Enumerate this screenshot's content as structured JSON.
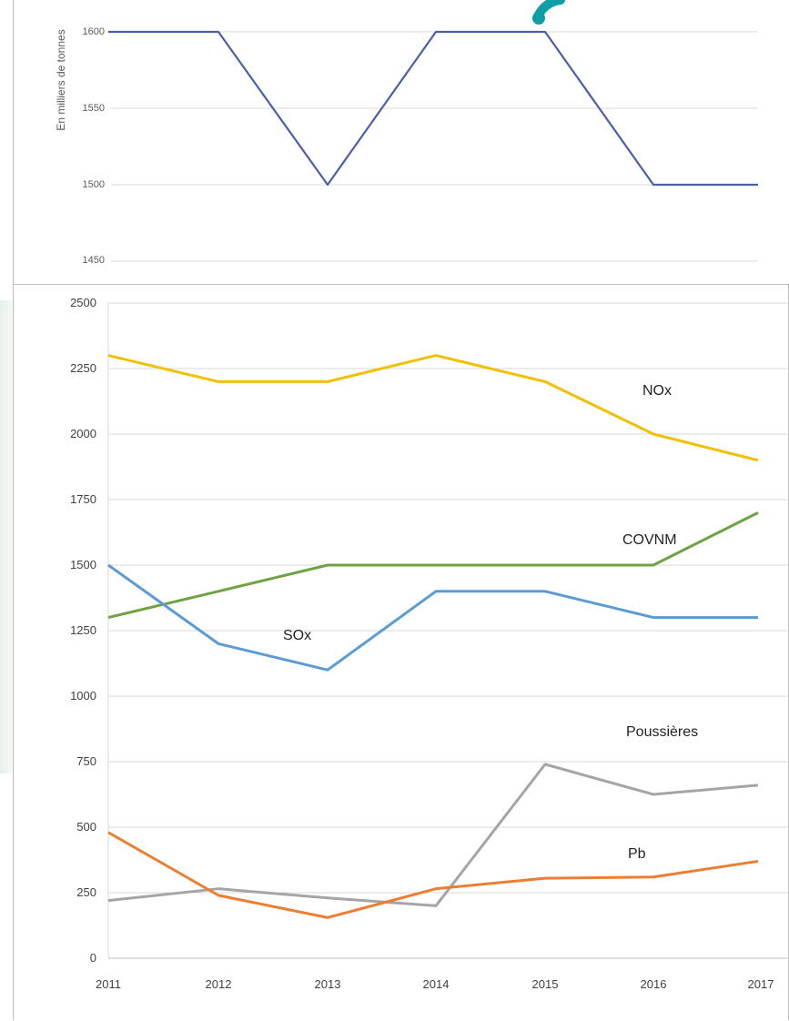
{
  "charts": {
    "top": {
      "ylabel": "En milliers de tonnes",
      "yticks": [
        "1450",
        "1500",
        "1550",
        "1600"
      ]
    },
    "bottom": {
      "yticks": [
        "0",
        "250",
        "500",
        "750",
        "1000",
        "1250",
        "1500",
        "1750",
        "2000",
        "2250",
        "2500"
      ],
      "xticks": [
        "2011",
        "2012",
        "2013",
        "2014",
        "2015",
        "2016",
        "2017"
      ],
      "labels": {
        "nox": "NOx",
        "covnm": "COVNM",
        "sox": "SOx",
        "poussieres": "Poussières",
        "pb": "Pb"
      }
    }
  },
  "chart_data": [
    {
      "type": "line",
      "x": [
        2011,
        2012,
        2013,
        2014,
        2015,
        2016,
        2017
      ],
      "series": [
        {
          "values": [
            1600,
            1600,
            1500,
            1600,
            1600,
            1500,
            1500
          ],
          "color": "#4a5fa7"
        }
      ],
      "ylabel": "En milliers de tonnes",
      "ylim": [
        1450,
        1600
      ],
      "grid": true,
      "note_cropped": "x axis not visible (chart cropped at bottom)"
    },
    {
      "type": "line",
      "x": [
        2011,
        2012,
        2013,
        2014,
        2015,
        2016,
        2017
      ],
      "series": [
        {
          "name": "NOx",
          "values": [
            2300,
            2200,
            2200,
            2300,
            2200,
            2000,
            1900
          ],
          "color": "#f2c000"
        },
        {
          "name": "COVNM",
          "values": [
            1300,
            1400,
            1500,
            1500,
            1500,
            1500,
            1700
          ],
          "color": "#6fa341"
        },
        {
          "name": "SOx",
          "values": [
            1500,
            1200,
            1100,
            1400,
            1400,
            1300,
            1300
          ],
          "color": "#5b9bd5"
        },
        {
          "name": "Poussières",
          "values": [
            220,
            265,
            230,
            200,
            740,
            625,
            660
          ],
          "color": "#a5a5a5"
        },
        {
          "name": "Pb",
          "values": [
            480,
            240,
            155,
            265,
            305,
            310,
            370
          ],
          "color": "#ed7d31"
        }
      ],
      "ylim": [
        0,
        2500
      ],
      "grid": true
    }
  ]
}
